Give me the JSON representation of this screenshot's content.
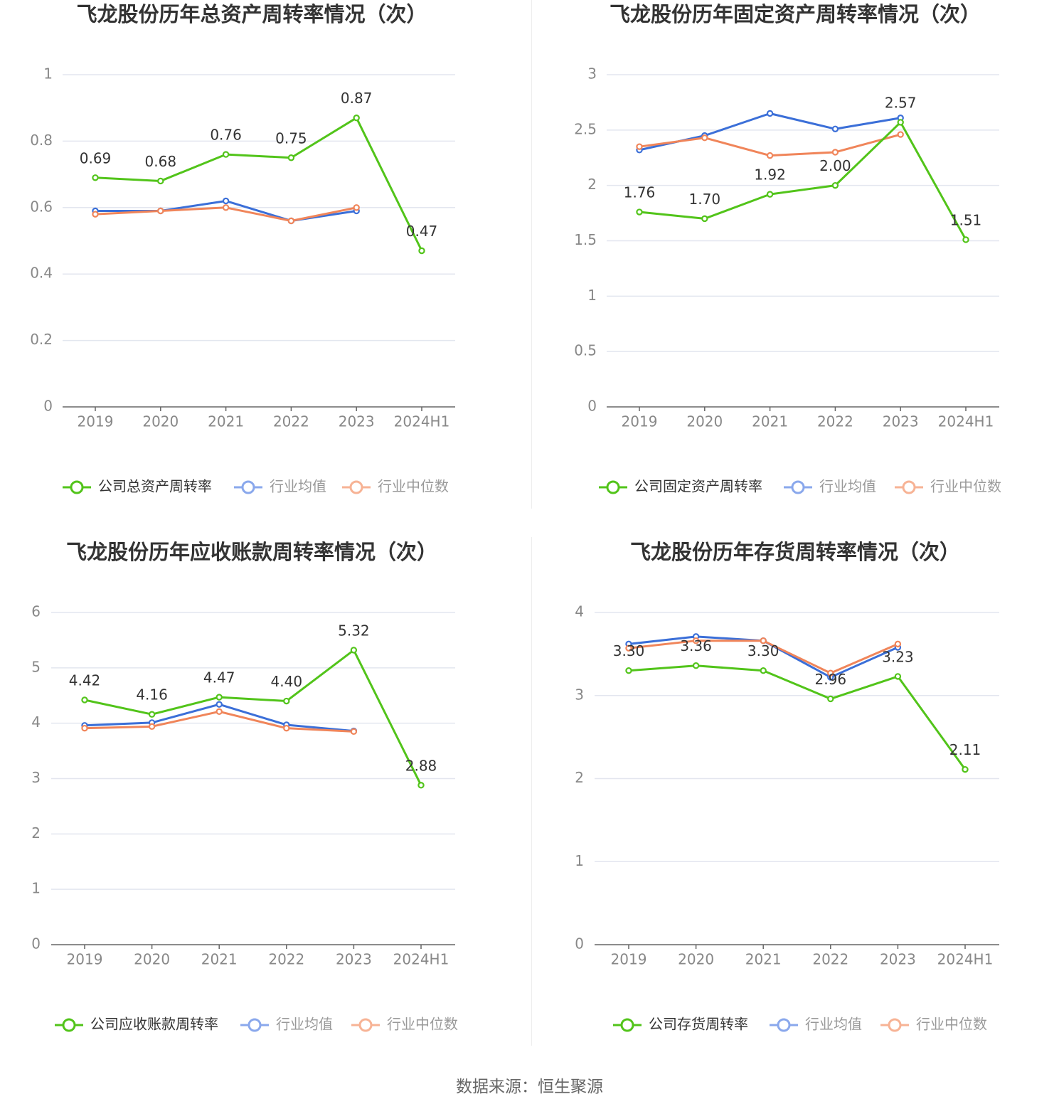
{
  "colors": {
    "company": "#52c41a",
    "industry_avg": "#3b6fd8",
    "industry_median": "#f0855a",
    "grid": "#e3e6ef",
    "axis": "#666666",
    "tick_text": "#888888",
    "title": "#333333",
    "label_text": "#333333"
  },
  "chart_data": [
    {
      "type": "line",
      "title": "飞龙股份历年总资产周转率情况（次）",
      "categories": [
        "2019",
        "2020",
        "2021",
        "2022",
        "2023",
        "2024H1"
      ],
      "ylim": [
        0,
        1
      ],
      "yticks": [
        0,
        0.2,
        0.4,
        0.6,
        0.8,
        1
      ],
      "ytick_labels": [
        "0",
        "0.2",
        "0.4",
        "0.6",
        "0.8",
        "1"
      ],
      "series": [
        {
          "name": "公司总资产周转率",
          "role": "company",
          "values": [
            0.69,
            0.68,
            0.76,
            0.75,
            0.87,
            0.47
          ],
          "labels": [
            "0.69",
            "0.68",
            "0.76",
            "0.75",
            "0.87",
            "0.47"
          ]
        },
        {
          "name": "行业均值",
          "role": "industry_avg",
          "values": [
            0.59,
            0.59,
            0.62,
            0.56,
            0.59,
            null
          ]
        },
        {
          "name": "行业中位数",
          "role": "industry_median",
          "values": [
            0.58,
            0.59,
            0.6,
            0.56,
            0.6,
            null
          ]
        }
      ]
    },
    {
      "type": "line",
      "title": "飞龙股份历年固定资产周转率情况（次）",
      "categories": [
        "2019",
        "2020",
        "2021",
        "2022",
        "2023",
        "2024H1"
      ],
      "ylim": [
        0,
        3
      ],
      "yticks": [
        0,
        0.5,
        1,
        1.5,
        2,
        2.5,
        3
      ],
      "ytick_labels": [
        "0",
        "0.5",
        "1",
        "1.5",
        "2",
        "2.5",
        "3"
      ],
      "series": [
        {
          "name": "公司固定资产周转率",
          "role": "company",
          "values": [
            1.76,
            1.7,
            1.92,
            2.0,
            2.57,
            1.51
          ],
          "labels": [
            "1.76",
            "1.70",
            "1.92",
            "2.00",
            "2.57",
            "1.51"
          ]
        },
        {
          "name": "行业均值",
          "role": "industry_avg",
          "values": [
            2.32,
            2.45,
            2.65,
            2.51,
            2.61,
            null
          ]
        },
        {
          "name": "行业中位数",
          "role": "industry_median",
          "values": [
            2.35,
            2.43,
            2.27,
            2.3,
            2.46,
            null
          ]
        }
      ]
    },
    {
      "type": "line",
      "title": "飞龙股份历年应收账款周转率情况（次）",
      "categories": [
        "2019",
        "2020",
        "2021",
        "2022",
        "2023",
        "2024H1"
      ],
      "ylim": [
        0,
        6
      ],
      "yticks": [
        0,
        1,
        2,
        3,
        4,
        5,
        6
      ],
      "ytick_labels": [
        "0",
        "1",
        "2",
        "3",
        "4",
        "5",
        "6"
      ],
      "series": [
        {
          "name": "公司应收账款周转率",
          "role": "company",
          "values": [
            4.42,
            4.16,
            4.47,
            4.4,
            5.32,
            2.88
          ],
          "labels": [
            "4.42",
            "4.16",
            "4.47",
            "4.40",
            "5.32",
            "2.88"
          ]
        },
        {
          "name": "行业均值",
          "role": "industry_avg",
          "values": [
            3.96,
            4.01,
            4.34,
            3.97,
            3.86,
            null
          ]
        },
        {
          "name": "行业中位数",
          "role": "industry_median",
          "values": [
            3.91,
            3.94,
            4.21,
            3.91,
            3.85,
            null
          ]
        }
      ]
    },
    {
      "type": "line",
      "title": "飞龙股份历年存货周转率情况（次）",
      "categories": [
        "2019",
        "2020",
        "2021",
        "2022",
        "2023",
        "2024H1"
      ],
      "ylim": [
        0,
        4
      ],
      "yticks": [
        0,
        1,
        2,
        3,
        4
      ],
      "ytick_labels": [
        "0",
        "1",
        "2",
        "3",
        "4"
      ],
      "series": [
        {
          "name": "公司存货周转率",
          "role": "company",
          "values": [
            3.3,
            3.36,
            3.3,
            2.96,
            3.23,
            2.11
          ],
          "labels": [
            "3.30",
            "3.36",
            "3.30",
            "2.96",
            "3.23",
            "2.11"
          ]
        },
        {
          "name": "行业均值",
          "role": "industry_avg",
          "values": [
            3.62,
            3.71,
            3.66,
            3.22,
            3.58,
            null
          ]
        },
        {
          "name": "行业中位数",
          "role": "industry_median",
          "values": [
            3.57,
            3.66,
            3.66,
            3.27,
            3.62,
            null
          ]
        }
      ]
    }
  ],
  "source": "数据来源：恒生聚源"
}
